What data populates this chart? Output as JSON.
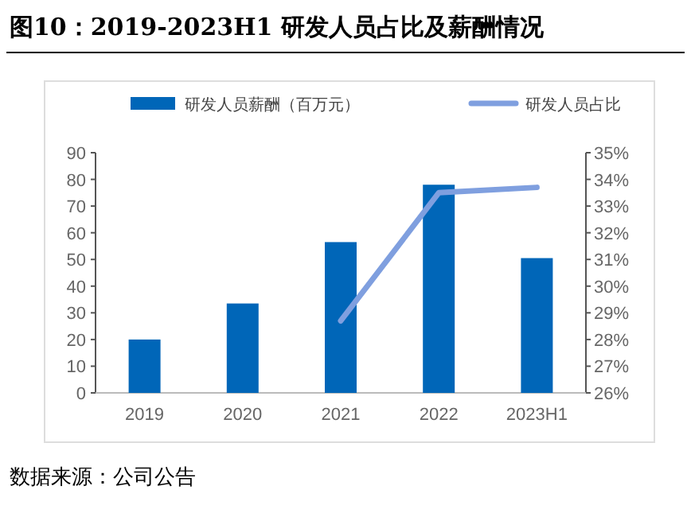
{
  "chart_data": {
    "type": "bar",
    "title": "图10：2019-2023H1 研发人员占比及薪酬情况",
    "categories": [
      "2019",
      "2020",
      "2021",
      "2022",
      "2023H1"
    ],
    "series": [
      {
        "name": "研发人员薪酬（百万元）",
        "color": "#0066b8",
        "values": [
          20,
          33.5,
          56.5,
          78,
          50.5
        ]
      },
      {
        "name": "研发人员占比",
        "type": "line",
        "axis": "y2",
        "color": "#7f9fdf",
        "values": [
          null,
          null,
          28.7,
          33.5,
          33.7
        ]
      }
    ],
    "ylim": [
      0,
      90
    ],
    "yticks": [
      0,
      10,
      20,
      30,
      40,
      50,
      60,
      70,
      80,
      90
    ],
    "y2lim": [
      26,
      35
    ],
    "y2ticks": [
      {
        "value": 26,
        "label": "26%"
      },
      {
        "value": 27,
        "label": "27%"
      },
      {
        "value": 28,
        "label": "28%"
      },
      {
        "value": 29,
        "label": "29%"
      },
      {
        "value": 30,
        "label": "30%"
      },
      {
        "value": 31,
        "label": "31%"
      },
      {
        "value": 32,
        "label": "32%"
      },
      {
        "value": 33,
        "label": "33%"
      },
      {
        "value": 34,
        "label": "34%"
      },
      {
        "value": 35,
        "label": "35%"
      }
    ],
    "legend": "top",
    "grid": false,
    "annotations": [
      "数据来源：公司公告"
    ]
  }
}
